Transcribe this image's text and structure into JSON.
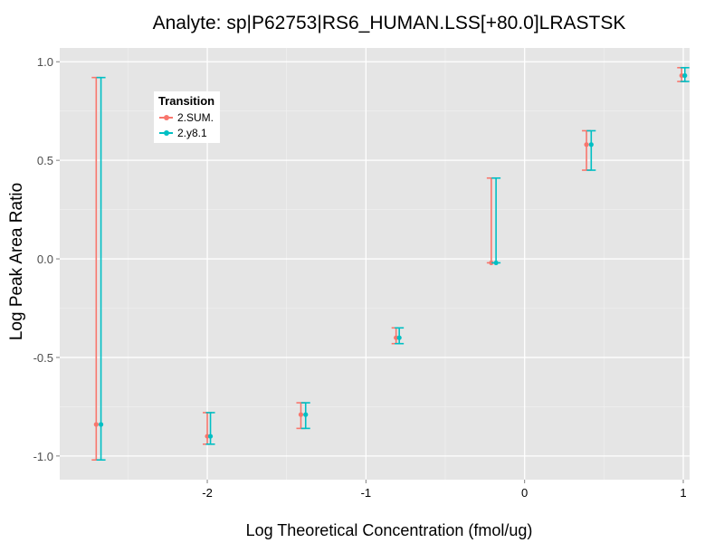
{
  "chart_data": {
    "type": "scatter",
    "title": "Analyte: sp|P62753|RS6_HUMAN.LSS[+80.0]LRASTSK",
    "xlabel": "Log Theoretical Concentration (fmol/ug)",
    "ylabel": "Log Peak Area Ratio",
    "xlim": [
      -2.93,
      1.04
    ],
    "ylim": [
      -1.12,
      1.07
    ],
    "x_ticks": [
      -2,
      -1,
      0,
      1
    ],
    "x_tick_labels": [
      "-2",
      "-1",
      "0",
      "1"
    ],
    "y_ticks": [
      -1.0,
      -0.5,
      0.0,
      0.5,
      1.0
    ],
    "y_tick_labels": [
      "-1.0",
      "-0.5",
      "0.0",
      "0.5",
      "1.0"
    ],
    "grid": true,
    "legend_title": "Transition",
    "legend_position": "top-left",
    "series": [
      {
        "name": "2.SUM.",
        "color": "#F8766D",
        "x": [
          -2.7,
          -2.0,
          -1.41,
          -0.81,
          -0.21,
          0.39,
          0.99
        ],
        "y": [
          -0.84,
          -0.9,
          -0.79,
          -0.4,
          -0.02,
          0.58,
          0.93
        ],
        "ymin": [
          -1.02,
          -0.94,
          -0.86,
          -0.43,
          -0.02,
          0.45,
          0.9
        ],
        "ymax": [
          0.92,
          -0.78,
          -0.73,
          -0.35,
          0.41,
          0.65,
          0.97
        ]
      },
      {
        "name": "2.y8.1",
        "color": "#00BFC4",
        "x": [
          -2.67,
          -1.98,
          -1.38,
          -0.79,
          -0.18,
          0.42,
          1.01
        ],
        "y": [
          -0.84,
          -0.9,
          -0.79,
          -0.4,
          -0.02,
          0.58,
          0.93
        ],
        "ymin": [
          -1.02,
          -0.94,
          -0.86,
          -0.43,
          -0.02,
          0.45,
          0.9
        ],
        "ymax": [
          0.92,
          -0.78,
          -0.73,
          -0.35,
          0.41,
          0.65,
          0.97
        ]
      }
    ]
  }
}
